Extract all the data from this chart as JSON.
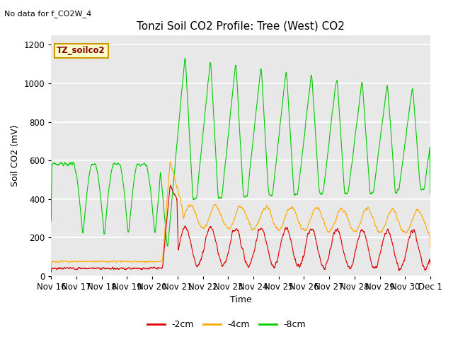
{
  "title": "Tonzi Soil CO2 Profile: Tree (West) CO2",
  "no_data_text": "No data for f_CO2W_4",
  "ylabel": "Soil CO2 (mV)",
  "xlabel": "Time",
  "legend_label": "TZ_soilco2",
  "series_labels": [
    "-2cm",
    "-4cm",
    "-8cm"
  ],
  "series_colors": [
    "#dd0000",
    "#ffaa00",
    "#00cc00"
  ],
  "ylim": [
    0,
    1250
  ],
  "plot_bg_color": "#e8e8e8",
  "x_tick_labels": [
    "Nov 16",
    "Nov 17",
    "Nov 18",
    "Nov 19",
    "Nov 20",
    "Nov 21",
    "Nov 22",
    "Nov 23",
    "Nov 24",
    "Nov 25",
    "Nov 26",
    "Nov 27",
    "Nov 28",
    "Nov 29",
    "Nov 30",
    "Dec 1"
  ],
  "fig_width": 6.4,
  "fig_height": 4.8,
  "dpi": 100
}
